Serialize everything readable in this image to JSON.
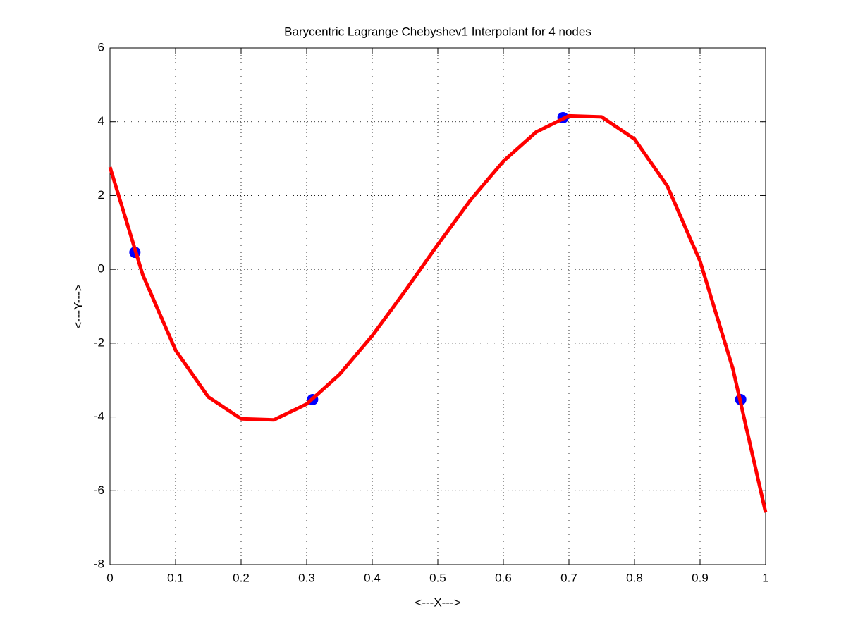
{
  "chart_data": {
    "type": "line",
    "title": "Barycentric Lagrange Chebyshev1 Interpolant for 4 nodes",
    "x_label": "<---X--->",
    "y_label": "<---Y--->",
    "xlim": [
      0,
      1
    ],
    "ylim": [
      -8,
      6
    ],
    "xticks": [
      0,
      0.1,
      0.2,
      0.3,
      0.4,
      0.5,
      0.6,
      0.7,
      0.8,
      0.9,
      1
    ],
    "yticks": [
      -8,
      -6,
      -4,
      -2,
      0,
      2,
      4,
      6
    ],
    "grid": true,
    "series": [
      {
        "type": "line",
        "color": "#ff0000",
        "x": [
          0,
          0.05,
          0.1,
          0.15,
          0.2,
          0.25,
          0.3,
          0.35,
          0.4,
          0.45,
          0.5,
          0.55,
          0.6,
          0.65,
          0.7,
          0.75,
          0.8,
          0.85,
          0.9,
          0.95,
          1
        ],
        "values": [
          2.77,
          -0.15,
          -2.19,
          -3.46,
          -4.05,
          -4.08,
          -3.65,
          -2.85,
          -1.8,
          -0.59,
          0.67,
          1.88,
          2.93,
          3.72,
          4.16,
          4.13,
          3.53,
          2.26,
          0.22,
          -2.69,
          -6.59
        ]
      },
      {
        "type": "scatter",
        "color": "#0000ff",
        "x": [
          0.038,
          0.309,
          0.691,
          0.962
        ],
        "values": [
          0.46,
          -3.53,
          4.11,
          -3.53
        ]
      }
    ]
  }
}
